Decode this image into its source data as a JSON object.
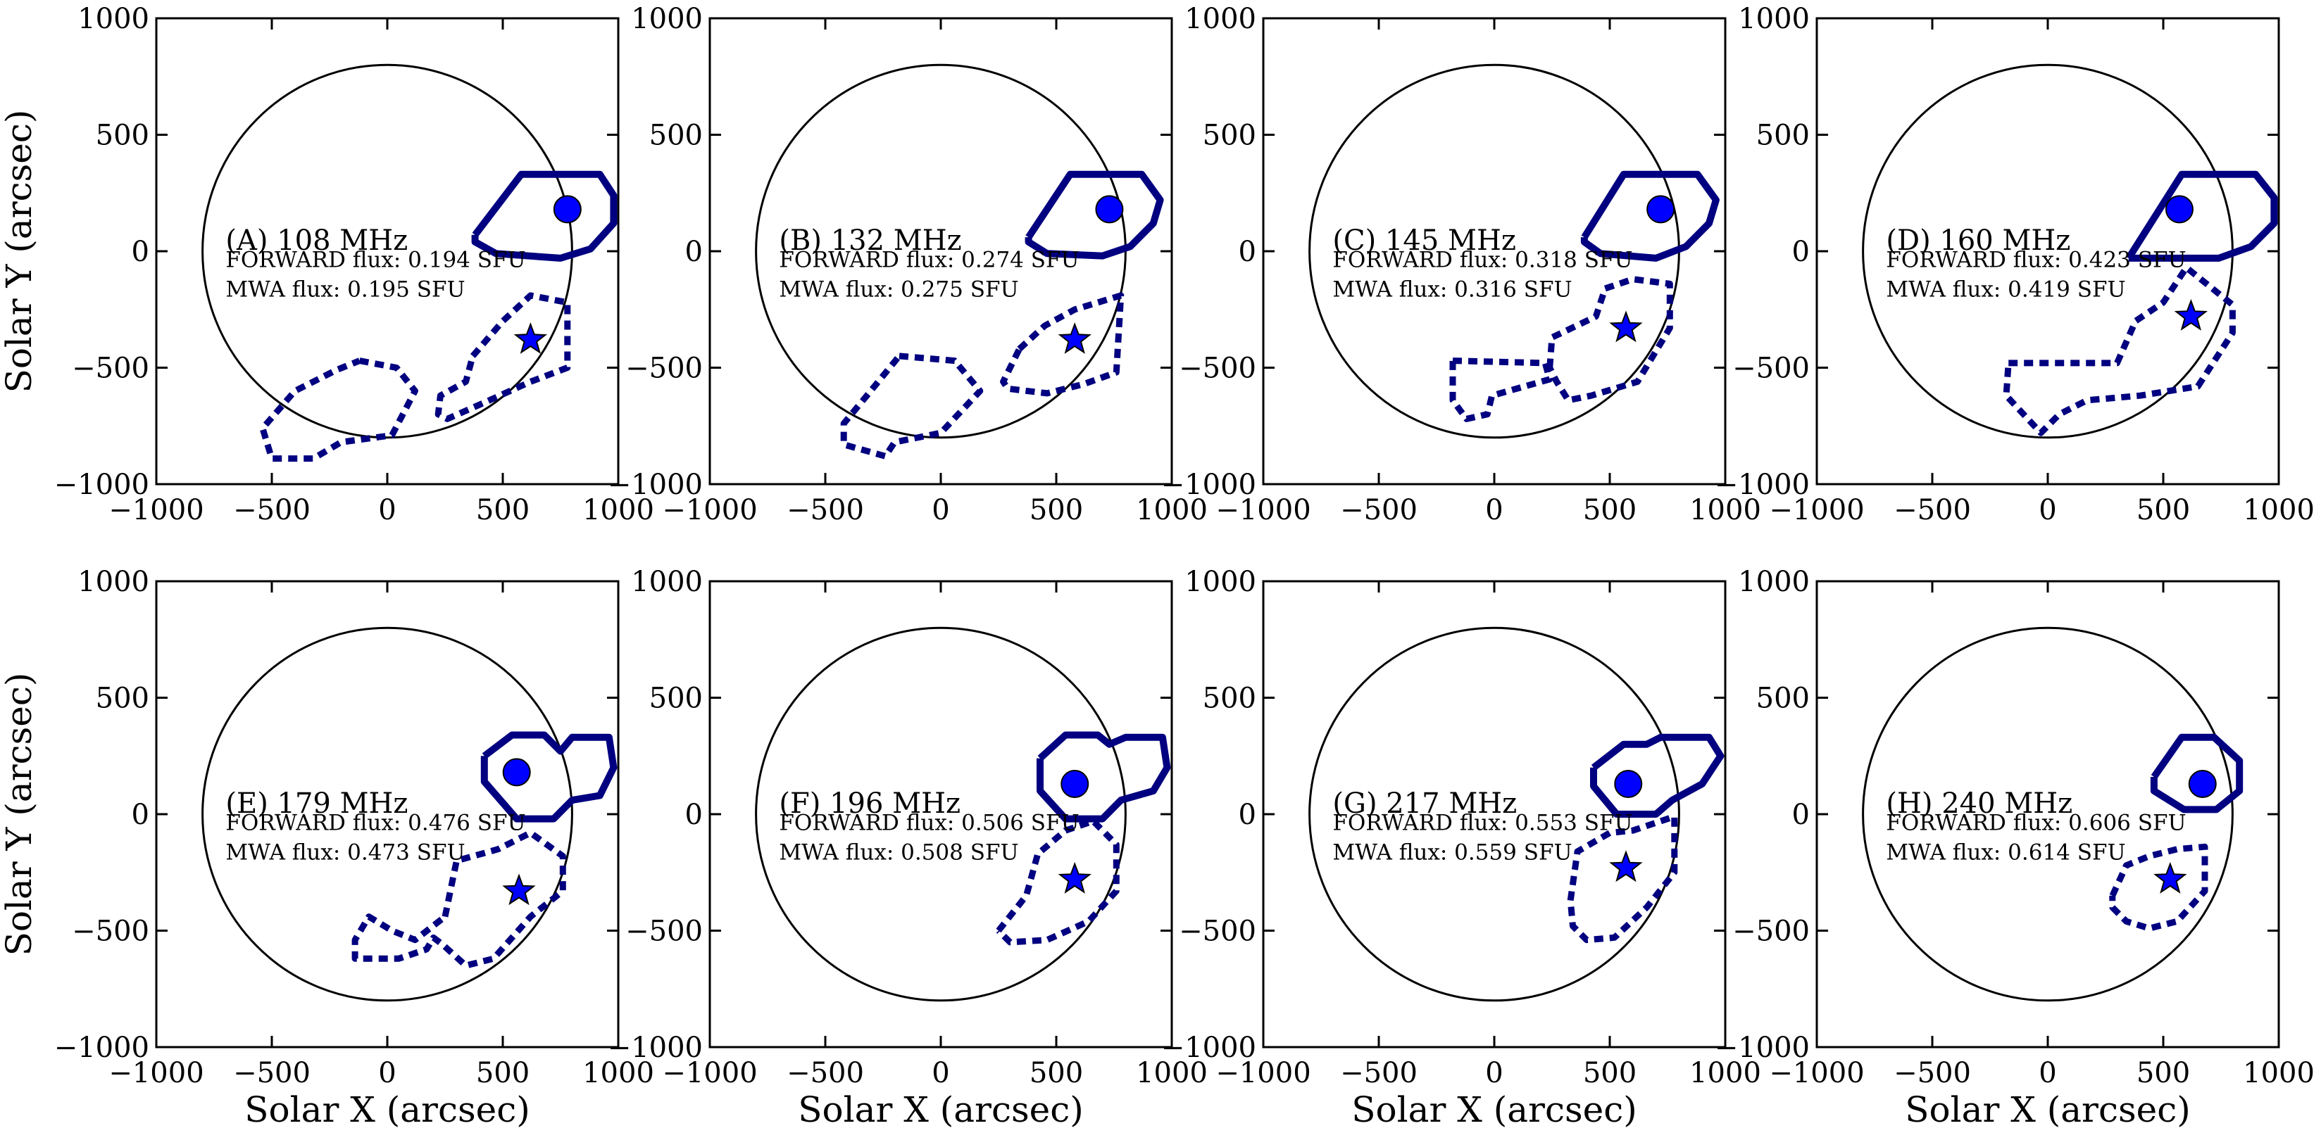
{
  "chart_data": {
    "type": "scatter",
    "description_units": "arcsec",
    "xlabel": "Solar X (arcsec)",
    "ylabel": "Solar Y (arcsec)",
    "xlim": [
      -1000,
      1000
    ],
    "ylim": [
      -1000,
      1000
    ],
    "x_ticks": [
      -1000,
      -500,
      0,
      500,
      1000
    ],
    "y_ticks": [
      -1000,
      -500,
      0,
      500,
      1000
    ],
    "solar_disk_radius": 800,
    "colors": {
      "contour": "#000080",
      "marker": "#0000ff",
      "disk": "#000000"
    },
    "panels": [
      {
        "label": "(A) 108 MHz",
        "forward_flux": "FORWARD flux: 0.194 SFU",
        "mwa_flux": "MWA flux: 0.195 SFU",
        "circle_marker": [
          780,
          180
        ],
        "star_marker": [
          620,
          -380
        ],
        "solid_contour": [
          [
            380,
            70
          ],
          [
            580,
            330
          ],
          [
            920,
            330
          ],
          [
            980,
            240
          ],
          [
            980,
            120
          ],
          [
            880,
            10
          ],
          [
            750,
            -30
          ],
          [
            470,
            -10
          ],
          [
            380,
            40
          ],
          [
            380,
            70
          ]
        ],
        "dashed_contour": [
          [
            370,
            -450
          ],
          [
            500,
            -300
          ],
          [
            620,
            -190
          ],
          [
            780,
            -220
          ],
          [
            780,
            -500
          ],
          [
            620,
            -560
          ],
          [
            420,
            -650
          ],
          [
            260,
            -720
          ],
          [
            220,
            -700
          ],
          [
            230,
            -620
          ],
          [
            340,
            -560
          ],
          [
            370,
            -450
          ]
        ],
        "dashed_contour_2": [
          [
            -120,
            -470
          ],
          [
            40,
            -500
          ],
          [
            120,
            -600
          ],
          [
            20,
            -790
          ],
          [
            -200,
            -820
          ],
          [
            -320,
            -890
          ],
          [
            -500,
            -890
          ],
          [
            -540,
            -760
          ],
          [
            -400,
            -600
          ],
          [
            -220,
            -510
          ],
          [
            -120,
            -470
          ]
        ]
      },
      {
        "label": "(B) 132 MHz",
        "forward_flux": "FORWARD flux: 0.274 SFU",
        "mwa_flux": "MWA flux: 0.275 SFU",
        "circle_marker": [
          730,
          180
        ],
        "star_marker": [
          580,
          -380
        ],
        "solid_contour": [
          [
            380,
            60
          ],
          [
            560,
            330
          ],
          [
            870,
            330
          ],
          [
            950,
            220
          ],
          [
            920,
            120
          ],
          [
            820,
            20
          ],
          [
            700,
            -20
          ],
          [
            460,
            -10
          ],
          [
            380,
            40
          ],
          [
            380,
            60
          ]
        ],
        "dashed_contour": [
          [
            340,
            -420
          ],
          [
            450,
            -320
          ],
          [
            580,
            -250
          ],
          [
            780,
            -190
          ],
          [
            760,
            -520
          ],
          [
            620,
            -570
          ],
          [
            460,
            -610
          ],
          [
            290,
            -590
          ],
          [
            270,
            -560
          ],
          [
            340,
            -420
          ]
        ],
        "dashed_contour_2": [
          [
            -180,
            -450
          ],
          [
            60,
            -470
          ],
          [
            170,
            -600
          ],
          [
            0,
            -780
          ],
          [
            -200,
            -820
          ],
          [
            -240,
            -880
          ],
          [
            -420,
            -830
          ],
          [
            -420,
            -740
          ],
          [
            -320,
            -620
          ],
          [
            -180,
            -450
          ]
        ]
      },
      {
        "label": "(C) 145 MHz",
        "forward_flux": "FORWARD flux: 0.318 SFU",
        "mwa_flux": "MWA flux: 0.316 SFU",
        "circle_marker": [
          720,
          180
        ],
        "star_marker": [
          570,
          -330
        ],
        "solid_contour": [
          [
            390,
            60
          ],
          [
            560,
            330
          ],
          [
            880,
            330
          ],
          [
            960,
            220
          ],
          [
            930,
            120
          ],
          [
            830,
            20
          ],
          [
            700,
            -30
          ],
          [
            460,
            -10
          ],
          [
            390,
            40
          ],
          [
            390,
            60
          ]
        ],
        "dashed_contour": [
          [
            240,
            -500
          ],
          [
            250,
            -370
          ],
          [
            440,
            -280
          ],
          [
            480,
            -160
          ],
          [
            600,
            -120
          ],
          [
            760,
            -140
          ],
          [
            760,
            -330
          ],
          [
            620,
            -560
          ],
          [
            420,
            -620
          ],
          [
            320,
            -640
          ],
          [
            270,
            -560
          ],
          [
            240,
            -500
          ]
        ],
        "dashed_contour_2": [
          [
            -180,
            -470
          ],
          [
            220,
            -480
          ],
          [
            240,
            -550
          ],
          [
            -10,
            -620
          ],
          [
            -30,
            -700
          ],
          [
            -120,
            -720
          ],
          [
            -180,
            -640
          ],
          [
            -180,
            -470
          ]
        ]
      },
      {
        "label": "(D) 160 MHz",
        "forward_flux": "FORWARD flux: 0.423 SFU",
        "mwa_flux": "MWA flux: 0.419 SFU",
        "circle_marker": [
          570,
          180
        ],
        "star_marker": [
          620,
          -280
        ],
        "solid_contour": [
          [
            350,
            -30
          ],
          [
            580,
            330
          ],
          [
            900,
            330
          ],
          [
            980,
            230
          ],
          [
            980,
            120
          ],
          [
            880,
            20
          ],
          [
            740,
            -30
          ],
          [
            520,
            -30
          ],
          [
            350,
            -30
          ]
        ],
        "dashed_contour": [
          [
            -170,
            -480
          ],
          [
            300,
            -480
          ],
          [
            380,
            -300
          ],
          [
            500,
            -220
          ],
          [
            600,
            -70
          ],
          [
            800,
            -230
          ],
          [
            800,
            -350
          ],
          [
            650,
            -580
          ],
          [
            400,
            -620
          ],
          [
            170,
            -640
          ],
          [
            50,
            -700
          ],
          [
            -30,
            -780
          ],
          [
            -180,
            -620
          ],
          [
            -170,
            -480
          ]
        ]
      },
      {
        "label": "(E) 179 MHz",
        "forward_flux": "FORWARD flux: 0.476 SFU",
        "mwa_flux": "MWA flux: 0.473 SFU",
        "circle_marker": [
          560,
          180
        ],
        "star_marker": [
          570,
          -330
        ],
        "solid_contour": [
          [
            420,
            250
          ],
          [
            540,
            340
          ],
          [
            680,
            340
          ],
          [
            750,
            270
          ],
          [
            800,
            330
          ],
          [
            960,
            330
          ],
          [
            980,
            200
          ],
          [
            920,
            80
          ],
          [
            800,
            60
          ],
          [
            720,
            -20
          ],
          [
            560,
            -20
          ],
          [
            420,
            140
          ],
          [
            420,
            250
          ]
        ],
        "dashed_contour": [
          [
            250,
            -440
          ],
          [
            300,
            -200
          ],
          [
            480,
            -150
          ],
          [
            620,
            -80
          ],
          [
            760,
            -180
          ],
          [
            760,
            -330
          ],
          [
            620,
            -440
          ],
          [
            460,
            -620
          ],
          [
            340,
            -650
          ],
          [
            240,
            -560
          ],
          [
            200,
            -530
          ],
          [
            170,
            -580
          ],
          [
            50,
            -620
          ],
          [
            -140,
            -620
          ],
          [
            -140,
            -540
          ],
          [
            -80,
            -440
          ],
          [
            20,
            -500
          ],
          [
            120,
            -540
          ],
          [
            250,
            -440
          ]
        ]
      },
      {
        "label": "(F) 196 MHz",
        "forward_flux": "FORWARD flux: 0.506 SFU",
        "mwa_flux": "MWA flux: 0.508 SFU",
        "circle_marker": [
          580,
          130
        ],
        "star_marker": [
          580,
          -280
        ],
        "solid_contour": [
          [
            430,
            240
          ],
          [
            540,
            340
          ],
          [
            680,
            340
          ],
          [
            730,
            300
          ],
          [
            800,
            330
          ],
          [
            960,
            330
          ],
          [
            980,
            200
          ],
          [
            920,
            100
          ],
          [
            780,
            60
          ],
          [
            700,
            -20
          ],
          [
            540,
            -20
          ],
          [
            430,
            100
          ],
          [
            430,
            240
          ]
        ],
        "dashed_contour": [
          [
            250,
            -500
          ],
          [
            370,
            -350
          ],
          [
            420,
            -170
          ],
          [
            540,
            -70
          ],
          [
            660,
            -30
          ],
          [
            760,
            -130
          ],
          [
            760,
            -330
          ],
          [
            640,
            -460
          ],
          [
            460,
            -540
          ],
          [
            300,
            -550
          ],
          [
            250,
            -500
          ]
        ]
      },
      {
        "label": "(G) 217 MHz",
        "forward_flux": "FORWARD flux: 0.553 SFU",
        "mwa_flux": "MWA flux: 0.559 SFU",
        "circle_marker": [
          580,
          130
        ],
        "star_marker": [
          570,
          -230
        ],
        "solid_contour": [
          [
            430,
            200
          ],
          [
            560,
            300
          ],
          [
            660,
            300
          ],
          [
            720,
            330
          ],
          [
            930,
            330
          ],
          [
            980,
            250
          ],
          [
            900,
            130
          ],
          [
            770,
            60
          ],
          [
            700,
            0
          ],
          [
            530,
            0
          ],
          [
            430,
            120
          ],
          [
            430,
            200
          ]
        ],
        "dashed_contour": [
          [
            330,
            -370
          ],
          [
            360,
            -160
          ],
          [
            500,
            -80
          ],
          [
            600,
            -70
          ],
          [
            780,
            -10
          ],
          [
            780,
            -250
          ],
          [
            660,
            -400
          ],
          [
            520,
            -530
          ],
          [
            400,
            -540
          ],
          [
            340,
            -480
          ],
          [
            330,
            -370
          ]
        ]
      },
      {
        "label": "(H) 240 MHz",
        "forward_flux": "FORWARD flux: 0.606 SFU",
        "mwa_flux": "MWA flux: 0.614 SFU",
        "circle_marker": [
          670,
          130
        ],
        "star_marker": [
          530,
          -280
        ],
        "solid_contour": [
          [
            460,
            160
          ],
          [
            580,
            330
          ],
          [
            720,
            330
          ],
          [
            830,
            230
          ],
          [
            830,
            100
          ],
          [
            730,
            20
          ],
          [
            590,
            20
          ],
          [
            460,
            100
          ],
          [
            460,
            160
          ]
        ],
        "dashed_contour": [
          [
            280,
            -350
          ],
          [
            340,
            -220
          ],
          [
            440,
            -180
          ],
          [
            560,
            -150
          ],
          [
            680,
            -140
          ],
          [
            680,
            -330
          ],
          [
            560,
            -460
          ],
          [
            440,
            -490
          ],
          [
            340,
            -460
          ],
          [
            280,
            -400
          ],
          [
            280,
            -350
          ]
        ]
      }
    ]
  }
}
